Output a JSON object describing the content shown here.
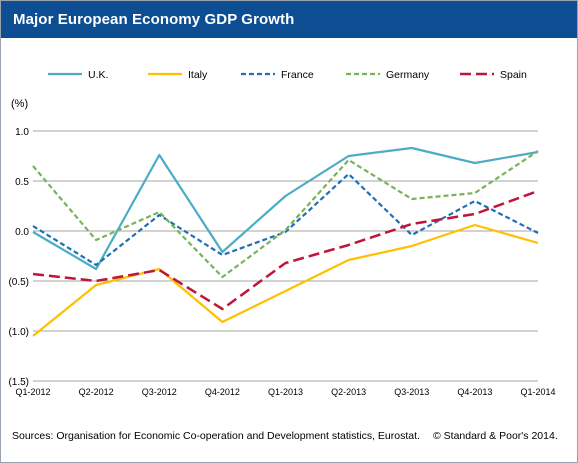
{
  "header": {
    "title": "Major European Economy  GDP Growth"
  },
  "footer": {
    "sources": "Sources: Organisation for Economic Co-operation and Development statistics, Eurostat.",
    "copyright": "© Standard & Poor's 2014."
  },
  "chart_data": {
    "type": "line",
    "ylabel": "(%)",
    "ylim": [
      -1.5,
      1.0
    ],
    "yticks": [
      1.0,
      0.5,
      0.0,
      -0.5,
      -1.0,
      -1.5
    ],
    "ytick_labels": [
      "1.0",
      "0.5",
      "0.0",
      "(0.5)",
      "(1.0)",
      "(1.5)"
    ],
    "categories": [
      "Q1-2012",
      "Q2-2012",
      "Q3-2012",
      "Q4-2012",
      "Q1-2013",
      "Q2-2013",
      "Q3-2013",
      "Q4-2013",
      "Q1-2014"
    ],
    "grid": true,
    "legend_position": "top",
    "series": [
      {
        "name": "U.K.",
        "color": "#4bacc6",
        "style": "solid",
        "values": [
          -0.01,
          -0.38,
          0.76,
          -0.21,
          0.35,
          0.75,
          0.83,
          0.68,
          0.79
        ]
      },
      {
        "name": "Italy",
        "color": "#ffc000",
        "style": "solid",
        "values": [
          -1.05,
          -0.54,
          -0.38,
          -0.91,
          -0.6,
          -0.29,
          -0.15,
          0.06,
          -0.12
        ]
      },
      {
        "name": "France",
        "color": "#1f6fb5",
        "style": "dash",
        "values": [
          0.05,
          -0.34,
          0.16,
          -0.24,
          -0.01,
          0.57,
          -0.04,
          0.3,
          -0.02
        ]
      },
      {
        "name": "Germany",
        "color": "#77b35a",
        "style": "dash",
        "values": [
          0.65,
          -0.09,
          0.19,
          -0.46,
          0.01,
          0.71,
          0.32,
          0.38,
          0.8
        ]
      },
      {
        "name": "Spain",
        "color": "#c0143c",
        "style": "longdash",
        "values": [
          -0.43,
          -0.5,
          -0.39,
          -0.78,
          -0.32,
          -0.14,
          0.07,
          0.17,
          0.4
        ]
      }
    ]
  }
}
